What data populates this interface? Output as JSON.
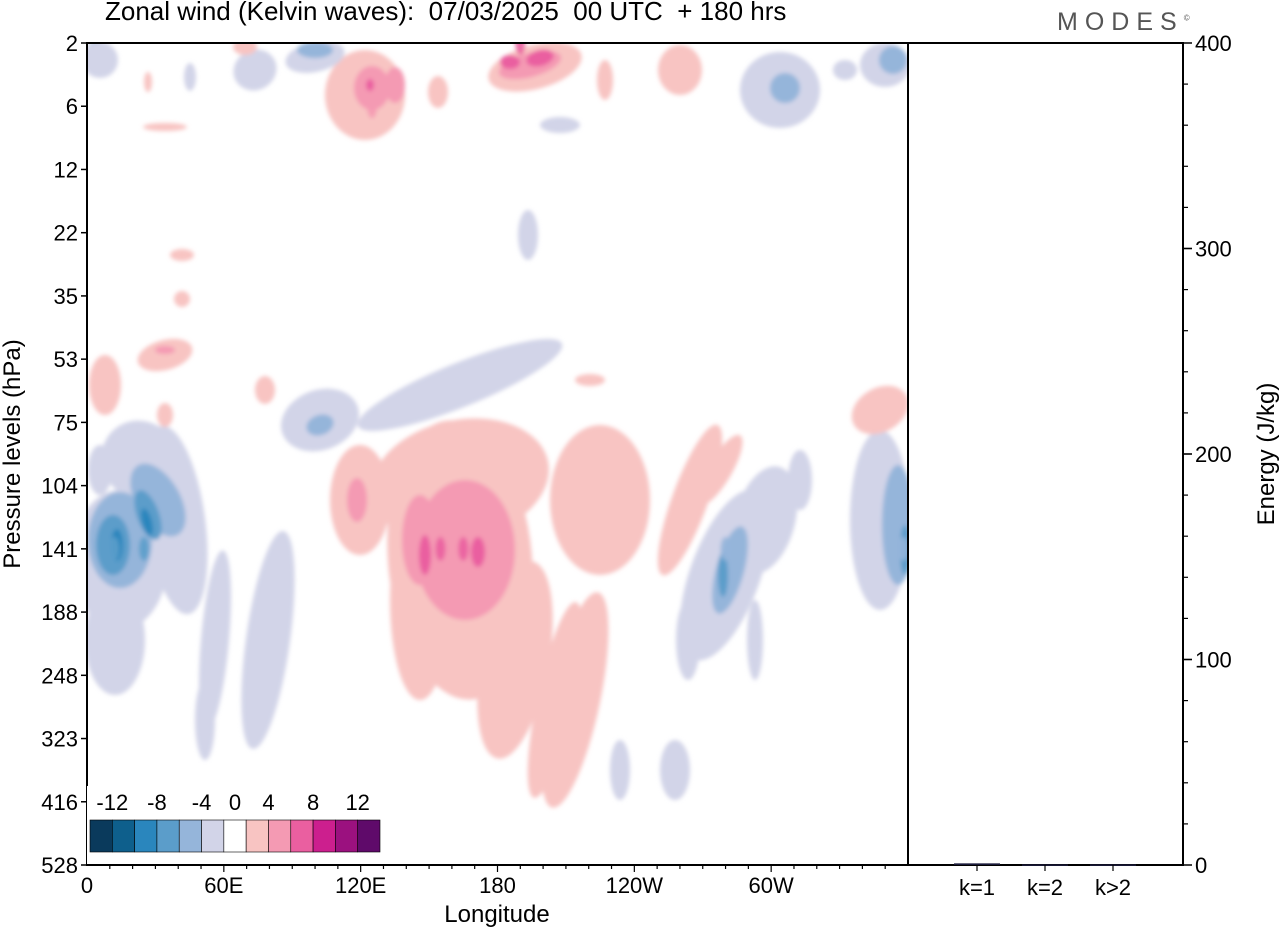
{
  "title": "Zonal wind (Kelvin waves):  07/03/2025  00 UTC  + 180 hrs",
  "brand": "MODES",
  "brand_mark": "©",
  "chart_data": [
    {
      "type": "heatmap",
      "title": "Zonal wind (Kelvin waves):  07/03/2025  00 UTC  + 180 hrs",
      "xlabel": "Longitude",
      "ylabel": "Pressure levels (hPa)",
      "x_ticks": [
        "0",
        "60E",
        "120E",
        "180",
        "120W",
        "60W"
      ],
      "x_tick_values": [
        0,
        60,
        120,
        180,
        240,
        300
      ],
      "xlim": [
        0,
        360
      ],
      "y_ticks": [
        "2",
        "6",
        "12",
        "22",
        "35",
        "53",
        "75",
        "104",
        "141",
        "188",
        "248",
        "323",
        "416",
        "528"
      ],
      "y_scale": "model levels (inverted, top = 2 hPa)",
      "grid": false,
      "colorbar": {
        "placement": "bottom-left",
        "labels": [
          "-12",
          "-8",
          "-4",
          "0",
          "4",
          "8",
          "12"
        ],
        "levels": [
          -14,
          -12,
          -10,
          -8,
          -6,
          -4,
          -2,
          2,
          4,
          6,
          8,
          10,
          12,
          14
        ],
        "colors": [
          "#0a3a5c",
          "#0e5f8c",
          "#2a86bd",
          "#5b9dca",
          "#95b5da",
          "#d2d4e8",
          "#ffffff",
          "#f8c4c2",
          "#f49ab3",
          "#ea5fa0",
          "#cc1f8e",
          "#9b117f",
          "#5f0a6a"
        ]
      },
      "features": [
        {
          "lon": 155,
          "level": "141",
          "value": 7
        },
        {
          "lon": 165,
          "level": "141",
          "value": 8
        },
        {
          "lon": 12,
          "level": "141",
          "value": -9
        },
        {
          "lon": 25,
          "level": "141",
          "value": -8
        },
        {
          "lon": 190,
          "level": "2",
          "value": 8
        },
        {
          "lon": 125,
          "level": "6",
          "value": 6
        },
        {
          "lon": 358,
          "level": "141",
          "value": -7
        },
        {
          "lon": 280,
          "level": "141",
          "value": -6
        }
      ]
    },
    {
      "type": "bar",
      "categories": [
        "k=1",
        "k=2",
        "k>2"
      ],
      "values": [
        0.8,
        0.3,
        0.3
      ],
      "ylabel": "Energy (J/kg)",
      "ylim": [
        0,
        400
      ],
      "y_ticks": [
        "0",
        "100",
        "200",
        "300",
        "400"
      ],
      "y_tick_values": [
        0,
        100,
        200,
        300,
        400
      ]
    }
  ]
}
